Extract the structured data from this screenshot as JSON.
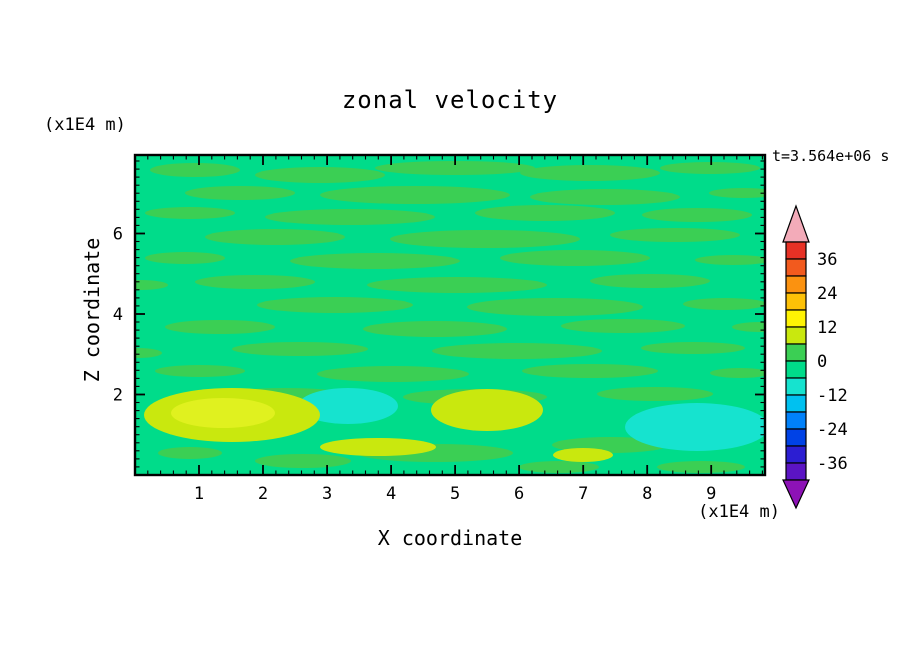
{
  "title": "zonal velocity",
  "timestamp": "t=3.564e+06 s",
  "axes": {
    "x": {
      "label": "X coordinate",
      "unit": "(x1E4 m)",
      "major_ticks": [
        1,
        2,
        3,
        4,
        5,
        6,
        7,
        8,
        9
      ],
      "range": [
        0,
        9.84
      ],
      "minor_step": 0.2
    },
    "y": {
      "label": "Z coordinate",
      "unit": "(x1E4 m)",
      "major_ticks": [
        2,
        4,
        6
      ],
      "range": [
        0,
        7.95
      ],
      "minor_step": 0.2
    }
  },
  "colorbar": {
    "labels": [
      "36",
      "24",
      "12",
      "0",
      "-12",
      "-24",
      "-36"
    ],
    "arrow_top_color": "#f3abb9",
    "arrow_bottom_color": "#8d12b6",
    "segment_colors_top_to_bottom": [
      "#e73125",
      "#f25a1e",
      "#fb9210",
      "#fdc107",
      "#fef304",
      "#c9e80e",
      "#3bcf54",
      "#00dc8a",
      "#16e3cf",
      "#00c1f0",
      "#0081fa",
      "#0042e6",
      "#2c1ed2",
      "#5b14c4"
    ]
  },
  "chart_data": {
    "type": "heatmap",
    "title": "zonal velocity",
    "xlabel": "X coordinate (x1E4 m)",
    "ylabel": "Z coordinate (x1E4 m)",
    "time_label": "t=3.564e+06 s",
    "xlim": [
      0,
      9.84
    ],
    "ylim": [
      0,
      7.95
    ],
    "contour_level_step": 6,
    "labeled_levels": [
      36,
      24,
      12,
      0,
      -12,
      -24,
      -36
    ],
    "colorbar_extend": "both",
    "description": "Filled contour field of zonal velocity: values near 0 dominate (spring-green band), with weak positive horizontal streaks (green band), yellow-green patches (+6..+12) and cyan patches (-6..-12) concentrated near the lower boundary.",
    "field_colors": {
      "bg": "#00dc8a",
      "dk": "#3bcf54",
      "yg": "#c9e80e",
      "yg2": "#e0f11f",
      "cy": "#16e3cf"
    },
    "contour_blobs": [
      [
        "dk",
        60,
        15,
        45,
        7
      ],
      [
        "dk",
        185,
        20,
        65,
        8
      ],
      [
        "dk",
        320,
        13,
        80,
        7
      ],
      [
        "dk",
        455,
        18,
        70,
        8
      ],
      [
        "dk",
        575,
        13,
        50,
        6
      ],
      [
        "dk",
        105,
        38,
        55,
        7
      ],
      [
        "dk",
        280,
        40,
        95,
        9
      ],
      [
        "dk",
        470,
        42,
        75,
        8
      ],
      [
        "dk",
        608,
        38,
        34,
        5
      ],
      [
        "dk",
        55,
        58,
        45,
        6
      ],
      [
        "dk",
        215,
        62,
        85,
        8
      ],
      [
        "dk",
        410,
        58,
        70,
        8
      ],
      [
        "dk",
        562,
        60,
        55,
        7
      ],
      [
        "dk",
        140,
        82,
        70,
        8
      ],
      [
        "dk",
        350,
        84,
        95,
        9
      ],
      [
        "dk",
        540,
        80,
        65,
        7
      ],
      [
        "dk",
        50,
        103,
        40,
        6
      ],
      [
        "dk",
        240,
        106,
        85,
        8
      ],
      [
        "dk",
        440,
        103,
        75,
        8
      ],
      [
        "dk",
        598,
        105,
        38,
        5
      ],
      [
        "dk",
        120,
        127,
        60,
        7
      ],
      [
        "dk",
        322,
        130,
        90,
        8
      ],
      [
        "dk",
        515,
        126,
        60,
        7
      ],
      [
        "dk",
        5,
        130,
        28,
        5
      ],
      [
        "dk",
        200,
        150,
        78,
        8
      ],
      [
        "dk",
        420,
        152,
        88,
        9
      ],
      [
        "dk",
        590,
        149,
        42,
        6
      ],
      [
        "dk",
        85,
        172,
        55,
        7
      ],
      [
        "dk",
        300,
        174,
        72,
        8
      ],
      [
        "dk",
        488,
        171,
        62,
        7
      ],
      [
        "dk",
        625,
        172,
        28,
        5
      ],
      [
        "dk",
        165,
        194,
        68,
        7
      ],
      [
        "dk",
        382,
        196,
        85,
        8
      ],
      [
        "dk",
        558,
        193,
        52,
        6
      ],
      [
        "dk",
        3,
        198,
        24,
        5
      ],
      [
        "dk",
        65,
        216,
        45,
        6
      ],
      [
        "dk",
        258,
        219,
        76,
        8
      ],
      [
        "dk",
        455,
        216,
        68,
        7
      ],
      [
        "dk",
        605,
        218,
        30,
        5
      ],
      [
        "dk",
        150,
        240,
        62,
        7
      ],
      [
        "dk",
        340,
        242,
        72,
        8
      ],
      [
        "dk",
        520,
        239,
        58,
        7
      ],
      [
        "dk",
        300,
        298,
        78,
        9
      ],
      [
        "dk",
        475,
        290,
        58,
        8
      ],
      [
        "dk",
        168,
        306,
        48,
        7
      ],
      [
        "dk",
        566,
        312,
        44,
        6
      ],
      [
        "dk",
        55,
        298,
        32,
        6
      ],
      [
        "dk",
        424,
        312,
        40,
        6
      ],
      [
        "cy",
        213,
        251,
        50,
        18
      ],
      [
        "cy",
        562,
        272,
        72,
        24
      ],
      [
        "yg",
        97,
        260,
        88,
        27
      ],
      [
        "yg",
        352,
        255,
        56,
        21
      ],
      [
        "yg",
        243,
        292,
        58,
        9
      ],
      [
        "yg",
        448,
        300,
        30,
        7
      ],
      [
        "yg2",
        88,
        258,
        52,
        15
      ]
    ]
  }
}
